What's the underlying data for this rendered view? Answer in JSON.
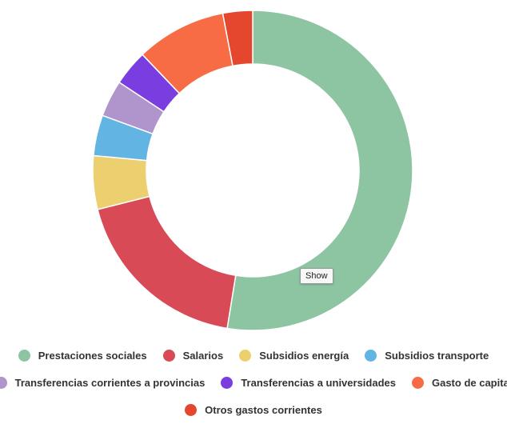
{
  "chart_data": {
    "type": "pie",
    "variant": "donut",
    "title": "",
    "categories": [
      "Prestaciones sociales",
      "Salarios",
      "Subsidios energía",
      "Subsidios transporte",
      "Transferencias corrientes a provincias",
      "Transferencias a universidades",
      "Gasto de capital",
      "Otros gastos corrientes"
    ],
    "values": [
      52.5,
      18.5,
      5.4,
      4.1,
      3.7,
      3.6,
      9.1,
      3.0
    ],
    "unit": "%",
    "colors": [
      "#8dc5a3",
      "#d94a57",
      "#eccf6e",
      "#62b5e3",
      "#b095cc",
      "#7a3ee0",
      "#f76b45",
      "#e4462e"
    ],
    "legend_position": "bottom",
    "tooltip": "Show"
  }
}
